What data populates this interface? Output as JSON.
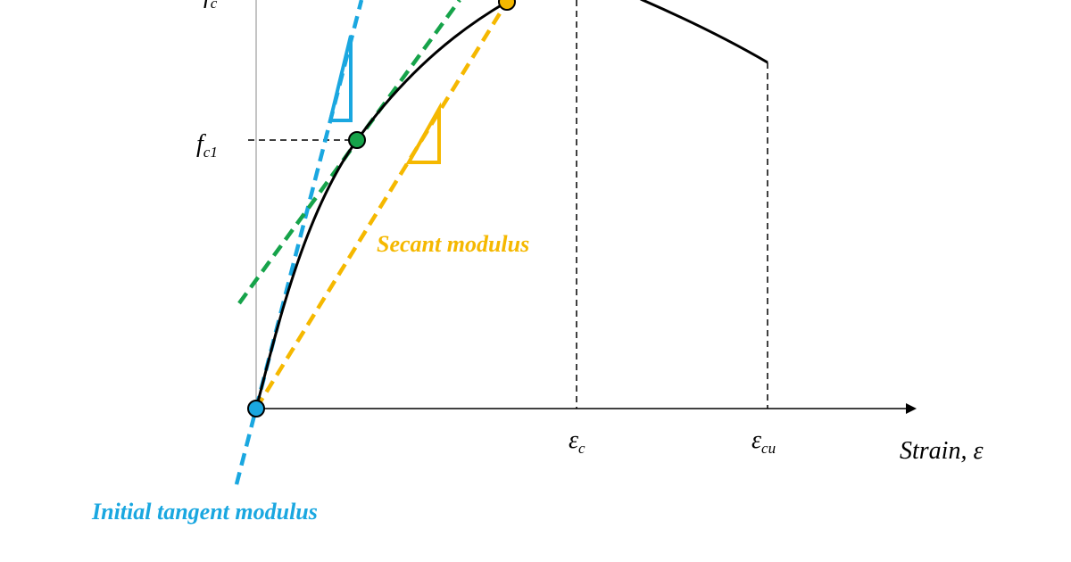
{
  "labels": {
    "peak_stress": {
      "symbol": "f",
      "subscript": "c"
    },
    "fc1": {
      "symbol": "f",
      "subscript": "c1"
    },
    "secant": "Secant modulus",
    "initial_tangent": "Initial tangent modulus",
    "eps_c": {
      "symbol": "ε",
      "subscript": "c"
    },
    "eps_cu": {
      "symbol": "ε",
      "subscript": "cu"
    },
    "x_axis": "Strain, ε"
  }
}
